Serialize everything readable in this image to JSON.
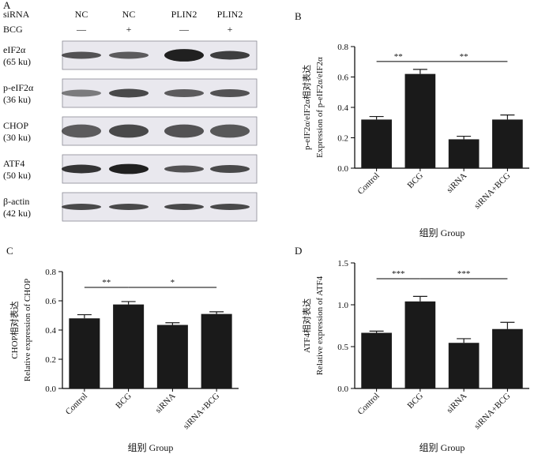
{
  "panel_letters": [
    "A",
    "B",
    "C",
    "D"
  ],
  "blot": {
    "row_headers": [
      {
        "label": "siRNA",
        "values": [
          "NC",
          "NC",
          "PLIN2",
          "PLIN2"
        ]
      },
      {
        "label": "BCG",
        "values": [
          "—",
          "+",
          "—",
          "+"
        ]
      }
    ],
    "bands": [
      {
        "name": "eIF2α",
        "size": "(65 ku)",
        "intensity": [
          0.75,
          0.7,
          1.0,
          0.85
        ],
        "thickness": [
          0.45,
          0.45,
          0.8,
          0.55
        ]
      },
      {
        "name": "p-eIF2α",
        "size": "(36 ku)",
        "intensity": [
          0.55,
          0.8,
          0.7,
          0.75
        ],
        "thickness": [
          0.45,
          0.55,
          0.5,
          0.5
        ]
      },
      {
        "name": "CHOP",
        "size": "(30 ku)",
        "intensity": [
          0.7,
          0.8,
          0.75,
          0.72
        ],
        "thickness": [
          0.85,
          0.85,
          0.85,
          0.85
        ]
      },
      {
        "name": "ATF4",
        "size": "(50 ku)",
        "intensity": [
          0.9,
          1.0,
          0.75,
          0.8
        ],
        "thickness": [
          0.55,
          0.65,
          0.45,
          0.5
        ]
      },
      {
        "name": "β-actin",
        "size": "(42 ku)",
        "intensity": [
          0.8,
          0.8,
          0.8,
          0.8
        ],
        "thickness": [
          0.4,
          0.4,
          0.4,
          0.4
        ]
      }
    ]
  },
  "colors": {
    "bar": "#1a1a1a",
    "membrane": "#e9e8ee",
    "band": "#202020",
    "axis": "#000000"
  },
  "chart_data": [
    {
      "panel": "B",
      "type": "bar",
      "categories": [
        "Control",
        "BCG",
        "siRNA",
        "siRNA+BCG"
      ],
      "values": [
        0.32,
        0.62,
        0.19,
        0.32
      ],
      "errors": [
        0.02,
        0.03,
        0.02,
        0.03
      ],
      "ylim": [
        0,
        0.8
      ],
      "yticks": [
        "0.0",
        "0.2",
        "0.4",
        "0.6",
        "0.8"
      ],
      "ylabel": [
        "p-eIF2α/eIF2α相对表达",
        "Expression of p-eIF2α/eIF2α"
      ],
      "xlabel": "组别 Group",
      "significance": [
        {
          "from": 0,
          "to": 1,
          "label": "**"
        },
        {
          "from": 1,
          "to": 3,
          "label": "**"
        }
      ]
    },
    {
      "panel": "C",
      "type": "bar",
      "categories": [
        "Control",
        "BCG",
        "siRNA",
        "siRNA+BCG"
      ],
      "values": [
        0.48,
        0.575,
        0.435,
        0.51
      ],
      "errors": [
        0.025,
        0.02,
        0.015,
        0.015
      ],
      "ylim": [
        0,
        0.8
      ],
      "yticks": [
        "0.0",
        "0.2",
        "0.4",
        "0.6",
        "0.8"
      ],
      "ylabel": [
        "CHOP相对表达",
        "Relative expression of CHOP"
      ],
      "xlabel": "组别 Group",
      "significance": [
        {
          "from": 0,
          "to": 1,
          "label": "**"
        },
        {
          "from": 1,
          "to": 3,
          "label": "*"
        }
      ]
    },
    {
      "panel": "D",
      "type": "bar",
      "categories": [
        "Control",
        "BCG",
        "siRNA",
        "siRNA+BCG"
      ],
      "values": [
        0.665,
        1.04,
        0.545,
        0.71
      ],
      "errors": [
        0.02,
        0.06,
        0.05,
        0.08
      ],
      "ylim": [
        0,
        1.5
      ],
      "yticks": [
        "0.0",
        "0.5",
        "1.0",
        "1.5"
      ],
      "ylabel": [
        "ATF4相对表达",
        "Relative expression of ATF4"
      ],
      "xlabel": "组别 Group",
      "significance": [
        {
          "from": 0,
          "to": 1,
          "label": "***"
        },
        {
          "from": 1,
          "to": 3,
          "label": "***"
        }
      ]
    }
  ]
}
